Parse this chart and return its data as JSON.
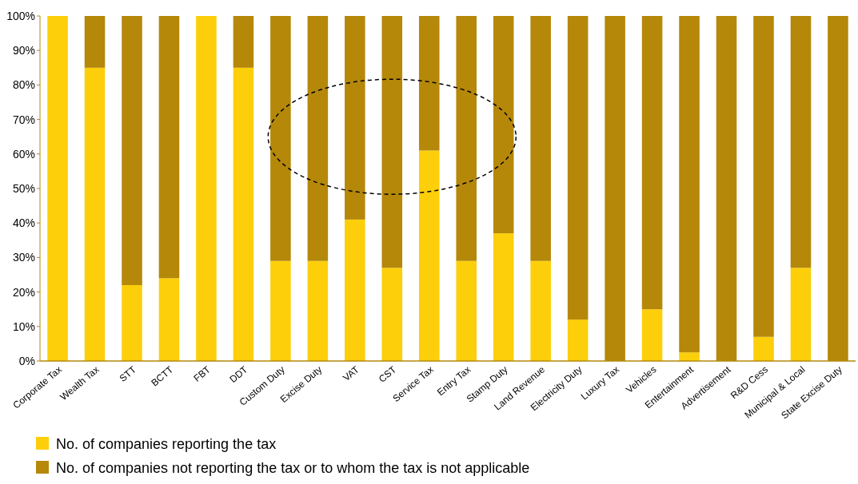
{
  "chart_data": {
    "type": "bar",
    "stacked": true,
    "categories": [
      "Corporate Tax",
      "Wealth Tax",
      "STT",
      "BCTT",
      "FBT",
      "DDT",
      "Custom Duty",
      "Excise Duty",
      "VAT",
      "CST",
      "Service Tax",
      "Entry Tax",
      "Stamp Duty",
      "Land Revenue",
      "Electricity Duty",
      "Luxury Tax",
      "Vehicles",
      "Entertainment",
      "Advertisement",
      "R&D Cess",
      "Municipal & Local",
      "State Excise Duty"
    ],
    "series": [
      {
        "name": "No. of companies reporting the tax",
        "color": "#fccf0a",
        "values": [
          100,
          85,
          22,
          24,
          100,
          85,
          29,
          29,
          41,
          27,
          61,
          29,
          37,
          29,
          12,
          0,
          15,
          2.5,
          0,
          7,
          27,
          0
        ]
      },
      {
        "name": "No. of companies not reporting the tax or to whom the tax is not applicable",
        "color": "#b5880a",
        "values": [
          0,
          15,
          78,
          76,
          0,
          15,
          71,
          71,
          59,
          73,
          39,
          71,
          63,
          71,
          88,
          100,
          85,
          97.5,
          100,
          93,
          73,
          100
        ]
      }
    ],
    "ylim": [
      0,
      100
    ],
    "yticks": [
      {
        "value": 0,
        "label": "0%"
      },
      {
        "value": 10,
        "label": "10%"
      },
      {
        "value": 20,
        "label": "20%"
      },
      {
        "value": 30,
        "label": "30%"
      },
      {
        "value": 40,
        "label": "40%"
      },
      {
        "value": 50,
        "label": "50%"
      },
      {
        "value": 60,
        "label": "60%"
      },
      {
        "value": 70,
        "label": "70%"
      },
      {
        "value": 80,
        "label": "80%"
      },
      {
        "value": 90,
        "label": "90%"
      },
      {
        "value": 100,
        "label": "100%"
      }
    ],
    "legend": "bottom"
  }
}
